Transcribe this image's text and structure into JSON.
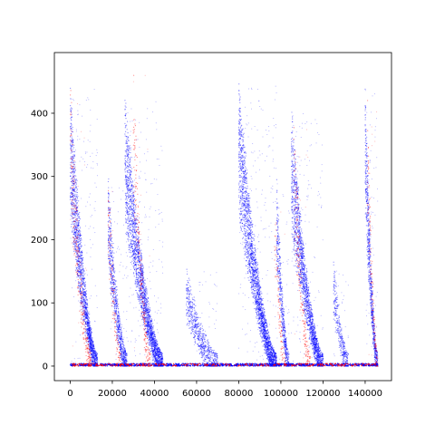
{
  "chart_data": {
    "type": "scatter",
    "title": "",
    "xlabel": "",
    "ylabel": "",
    "xlim": [
      -7500,
      152500
    ],
    "ylim": [
      -23,
      496
    ],
    "x_ticks": [
      0,
      20000,
      40000,
      60000,
      80000,
      100000,
      120000,
      140000
    ],
    "x_tick_labels": [
      "0",
      "20000",
      "40000",
      "60000",
      "80000",
      "100000",
      "120000",
      "140000"
    ],
    "y_ticks": [
      0,
      100,
      200,
      300,
      400
    ],
    "y_tick_labels": [
      "0",
      "100",
      "200",
      "300",
      "400"
    ],
    "grid": false,
    "legend": "none",
    "series": [
      {
        "name": "blue",
        "color": "#0000ff",
        "description": "dense vertical bands of small points, each decaying from a peak toward 0",
        "bands": [
          {
            "x_start": 0,
            "x_end": 13000,
            "peak": 440
          },
          {
            "x_start": 18000,
            "x_end": 27000,
            "peak": 295
          },
          {
            "x_start": 26000,
            "x_end": 44000,
            "peak": 420
          },
          {
            "x_start": 55000,
            "x_end": 70000,
            "peak": 150
          },
          {
            "x_start": 80000,
            "x_end": 98000,
            "peak": 445
          },
          {
            "x_start": 98000,
            "x_end": 104000,
            "peak": 290
          },
          {
            "x_start": 105000,
            "x_end": 120000,
            "peak": 400
          },
          {
            "x_start": 125000,
            "x_end": 132000,
            "peak": 160
          },
          {
            "x_start": 140000,
            "x_end": 146000,
            "peak": 440
          }
        ]
      },
      {
        "name": "red",
        "color": "#ff0000",
        "description": "sparser red points overlaid on the same bands, mostly near peaks and along 0",
        "bands": [
          {
            "x_start": 0,
            "x_end": 10000,
            "peak": 450
          },
          {
            "x_start": 18000,
            "x_end": 24000,
            "peak": 330
          },
          {
            "x_start": 30000,
            "x_end": 38000,
            "peak": 475
          },
          {
            "x_start": 97000,
            "x_end": 102000,
            "peak": 300
          },
          {
            "x_start": 106000,
            "x_end": 114000,
            "peak": 400
          },
          {
            "x_start": 141000,
            "x_end": 146000,
            "peak": 440
          }
        ]
      }
    ]
  }
}
